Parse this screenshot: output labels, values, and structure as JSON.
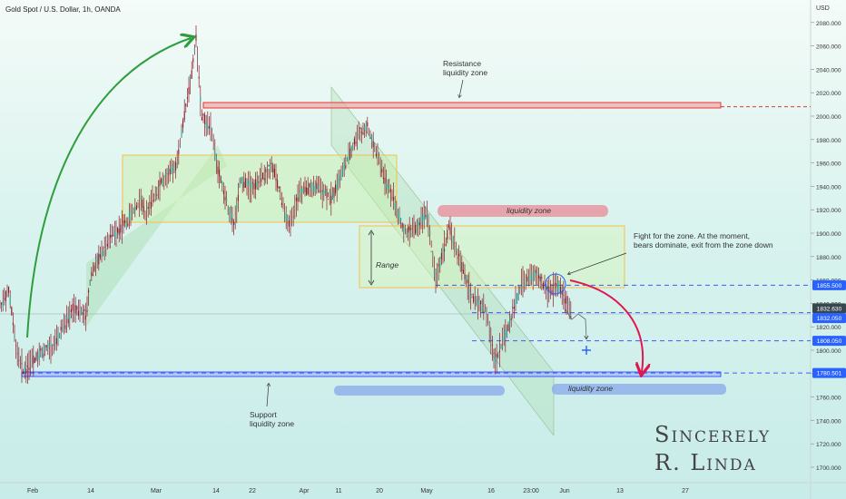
{
  "header": {
    "title": "Gold Spot / U.S. Dollar, 1h, OANDA",
    "currency": "USD"
  },
  "colors": {
    "up": "#26a69a",
    "down": "#ef5350",
    "candle": "#8a1c2a",
    "support": "#3d5afe",
    "resistance": "#e53935",
    "zone_box": "#f5c04a",
    "arrow_green": "#2e9e3e",
    "arrow_red": "#e0174f",
    "price_tag": "#2962ff"
  },
  "chart_data": {
    "type": "candlestick",
    "symbol": "Gold Spot / U.S. Dollar",
    "timeframe": "1h",
    "source": "OANDA",
    "y_ticks": [
      "2080.000",
      "2060.000",
      "2040.000",
      "2020.000",
      "2000.000",
      "1980.000",
      "1960.000",
      "1940.000",
      "1920.000",
      "1900.000",
      "1880.000",
      "1860.000",
      "1840.000",
      "1820.000",
      "1800.000",
      "1780.000",
      "1760.000",
      "1740.000",
      "1720.000",
      "1700.000"
    ],
    "x_ticks": [
      "Feb",
      "14",
      "Mar",
      "14",
      "22",
      "Apr",
      "11",
      "20",
      "May",
      "16",
      "23:00",
      "Jun",
      "13",
      "27"
    ],
    "ylim": [
      1695,
      2090
    ],
    "price_levels": [
      {
        "label": "1855.500",
        "value": 1855.5
      },
      {
        "label": "1832.630",
        "value": 1832.63
      },
      {
        "label": "1832.050",
        "value": 1832.05
      },
      {
        "label": "1808.050",
        "value": 1808.05
      },
      {
        "label": "1780.501",
        "value": 1780.501
      }
    ],
    "resistance_level": 2008,
    "annotations": {
      "resistance": "Resistance\nliquidity zone",
      "support": "Support\nliquidity zone",
      "liquidity_zone": "liquidity zone",
      "range": "Range",
      "fight": "Fight for the zone. At the moment,\nbears dominate, exit from the zone down"
    },
    "signature": [
      "Sincerely",
      "R. Linda"
    ]
  }
}
